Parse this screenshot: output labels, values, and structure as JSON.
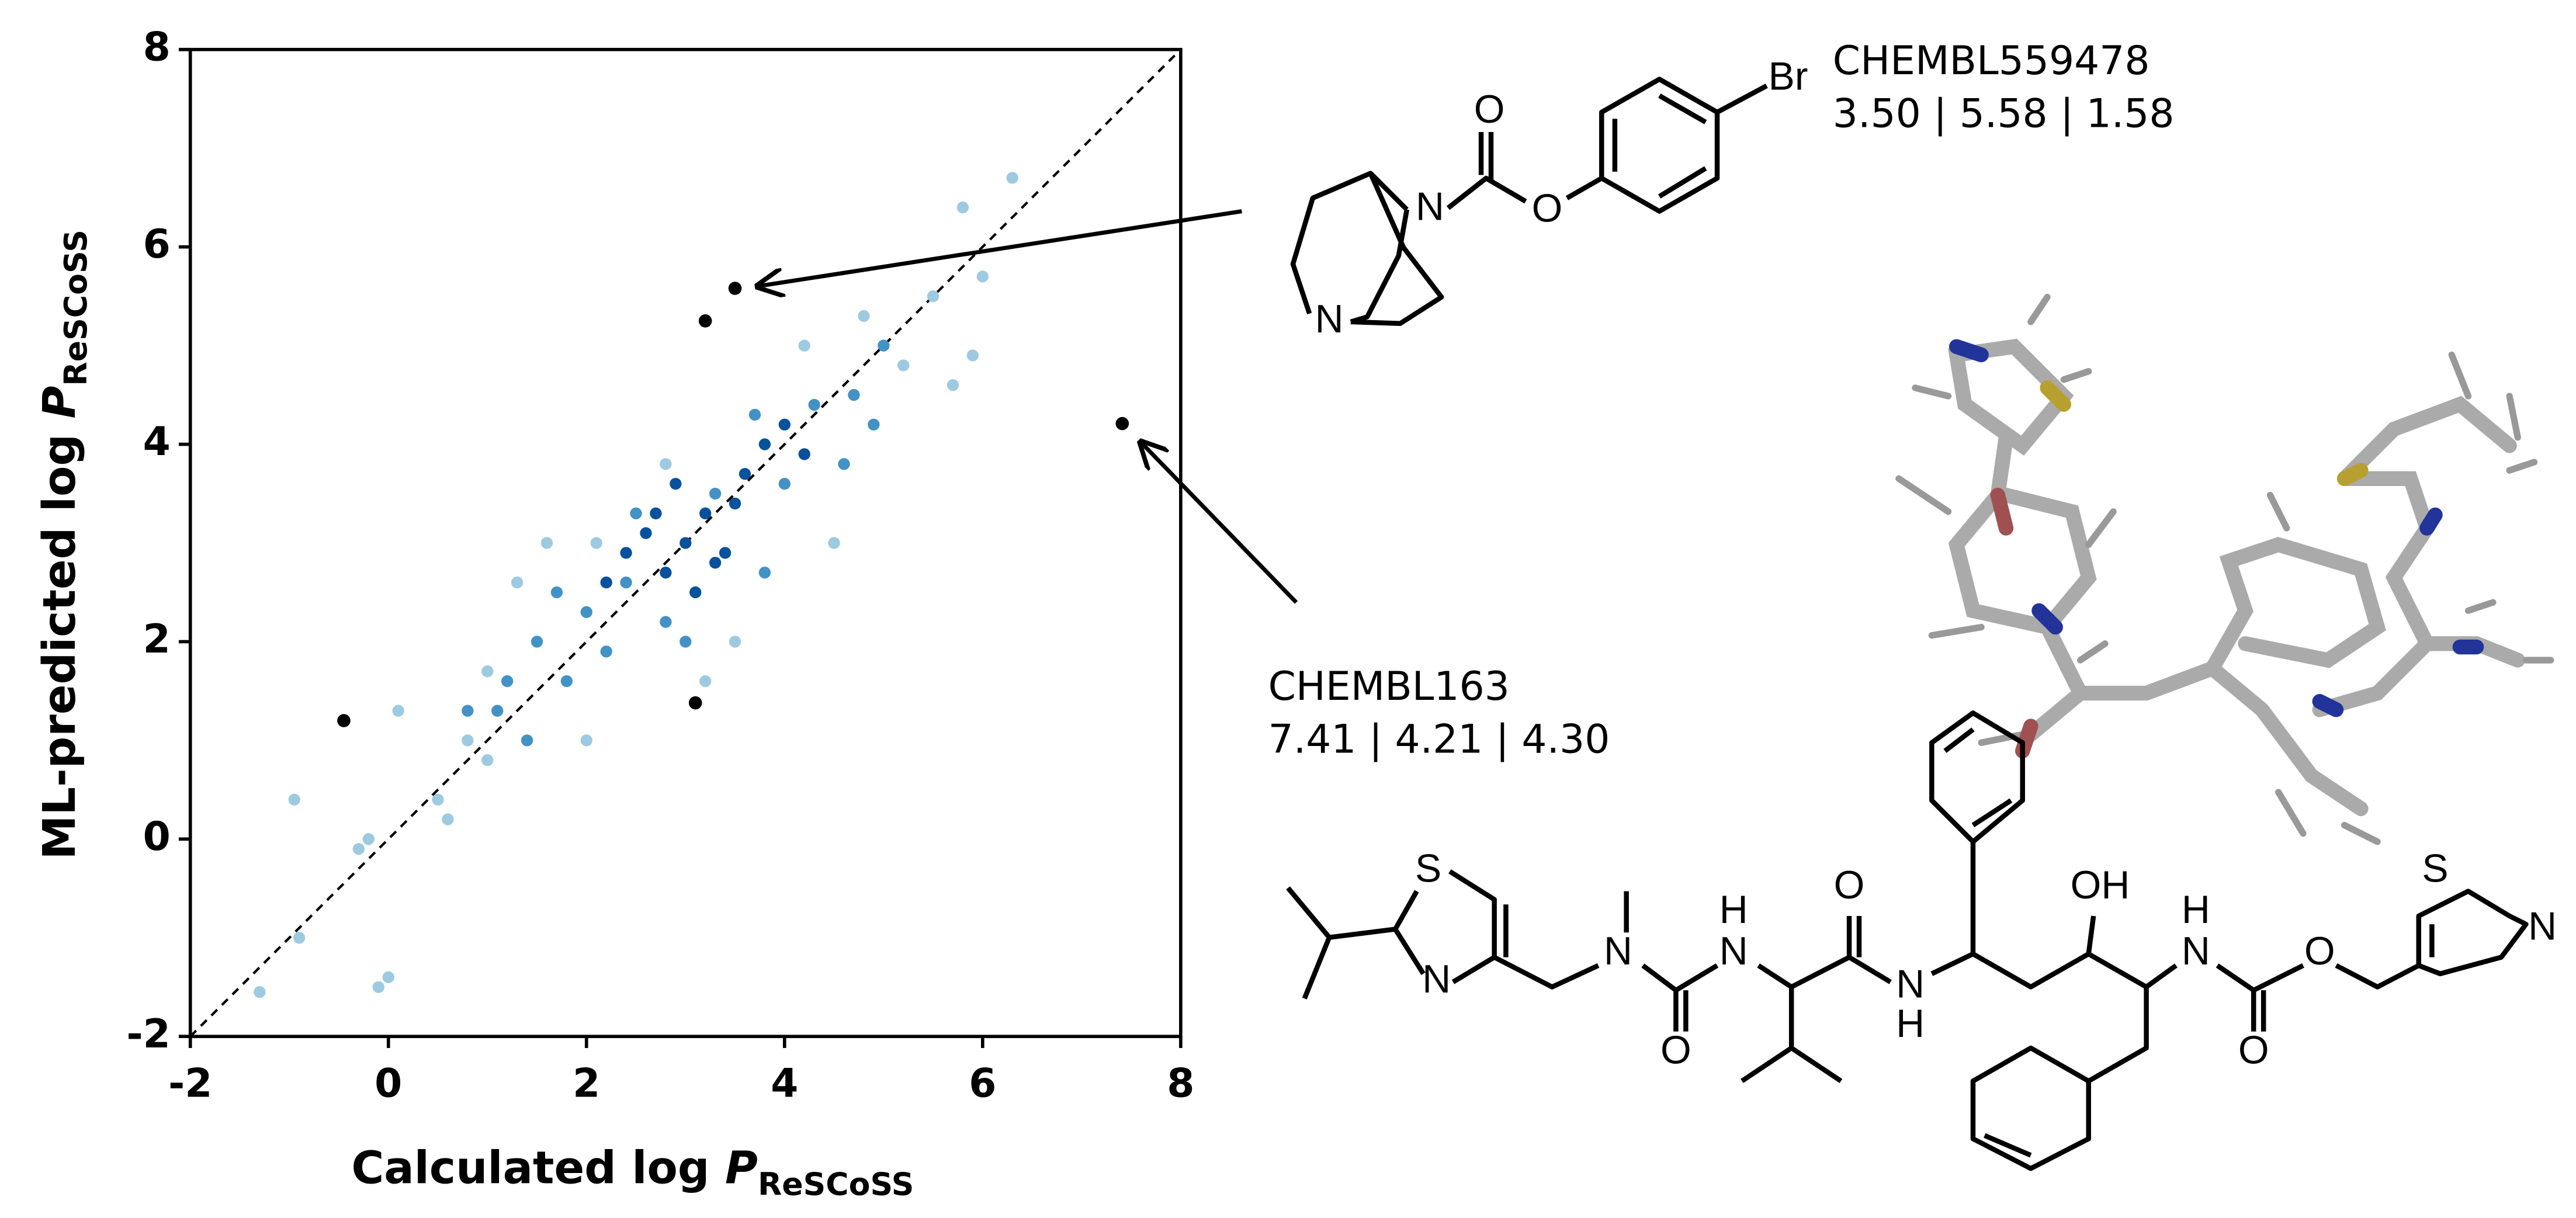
{
  "chart_data": {
    "type": "scatter",
    "x_label": {
      "text": "Calculated log ",
      "var": "P",
      "subscript": "ReSCoSS"
    },
    "y_label": {
      "text": "ML-predicted log ",
      "var": "P",
      "subscript": "ReSCoSS"
    },
    "xlim": [
      -2,
      8
    ],
    "ylim": [
      -2,
      8
    ],
    "xticks": [
      -2,
      0,
      2,
      4,
      6,
      8
    ],
    "yticks": [
      -2,
      0,
      2,
      4,
      6,
      8
    ],
    "identity_line": true,
    "x": [
      -1.3,
      -0.9,
      -0.95,
      0.0,
      -0.1,
      -0.3,
      0.1,
      0.5,
      0.8,
      1.3,
      1.6,
      2.8,
      3.5,
      4.8,
      5.5,
      5.8,
      6.3,
      6.0,
      5.7,
      4.2,
      2.0,
      3.2,
      -0.2,
      0.6,
      1.0,
      5.9,
      4.5,
      2.1,
      1.0,
      5.2,
      0.8,
      1.2,
      1.5,
      1.8,
      2.0,
      2.2,
      1.1,
      2.4,
      3.3,
      4.0,
      4.3,
      4.7,
      5.0,
      3.7,
      2.8,
      3.0,
      1.4,
      4.6,
      3.8,
      2.5,
      4.9,
      1.7,
      2.4,
      2.6,
      2.8,
      3.0,
      3.2,
      3.4,
      3.6,
      3.8,
      4.0,
      2.9,
      3.1,
      3.5,
      2.7,
      3.3,
      2.2,
      4.2
    ],
    "y": [
      -1.55,
      -1.0,
      0.4,
      -1.4,
      -1.5,
      -0.1,
      1.3,
      0.4,
      1.0,
      2.6,
      3.0,
      3.8,
      2.0,
      5.3,
      5.5,
      6.4,
      6.7,
      5.7,
      4.6,
      5.0,
      1.0,
      1.6,
      0.0,
      0.2,
      0.8,
      4.9,
      3.0,
      3.0,
      1.7,
      4.8,
      1.3,
      1.6,
      2.0,
      1.6,
      2.3,
      1.9,
      1.3,
      2.6,
      3.5,
      3.6,
      4.4,
      4.5,
      5.0,
      4.3,
      2.2,
      2.0,
      1.0,
      3.8,
      2.7,
      3.3,
      4.2,
      2.5,
      2.9,
      3.1,
      2.7,
      3.0,
      3.3,
      2.9,
      3.7,
      4.0,
      4.2,
      3.6,
      2.5,
      3.4,
      3.3,
      2.8,
      2.6,
      3.9
    ],
    "colors": [
      "#9ecae1",
      "#9ecae1",
      "#9ecae1",
      "#9ecae1",
      "#9ecae1",
      "#9ecae1",
      "#9ecae1",
      "#9ecae1",
      "#9ecae1",
      "#9ecae1",
      "#9ecae1",
      "#9ecae1",
      "#9ecae1",
      "#9ecae1",
      "#9ecae1",
      "#9ecae1",
      "#9ecae1",
      "#9ecae1",
      "#9ecae1",
      "#9ecae1",
      "#9ecae1",
      "#9ecae1",
      "#9ecae1",
      "#9ecae1",
      "#9ecae1",
      "#9ecae1",
      "#9ecae1",
      "#9ecae1",
      "#9ecae1",
      "#9ecae1",
      "#4292c6",
      "#4292c6",
      "#4292c6",
      "#4292c6",
      "#4292c6",
      "#4292c6",
      "#4292c6",
      "#4292c6",
      "#4292c6",
      "#4292c6",
      "#4292c6",
      "#4292c6",
      "#4292c6",
      "#4292c6",
      "#4292c6",
      "#4292c6",
      "#4292c6",
      "#4292c6",
      "#4292c6",
      "#4292c6",
      "#4292c6",
      "#4292c6",
      "#08519c",
      "#08519c",
      "#08519c",
      "#08519c",
      "#08519c",
      "#08519c",
      "#08519c",
      "#08519c",
      "#08519c",
      "#08519c",
      "#08519c",
      "#08519c",
      "#08519c",
      "#08519c",
      "#08519c",
      "#08519c"
    ],
    "highlighted": {
      "x": [
        3.5,
        3.2,
        7.41,
        -0.45,
        3.1
      ],
      "y": [
        5.58,
        5.25,
        4.21,
        1.2,
        1.38
      ],
      "color": "#000000"
    },
    "annotations": [
      {
        "name": "CHEMBL559478",
        "values_text": "3.50 | 5.58 | 1.58"
      },
      {
        "name": "CHEMBL163",
        "values_text": "7.41 | 4.21 | 4.30"
      }
    ]
  },
  "molecule_1": {
    "atoms": [
      "Br",
      "O",
      "O",
      "N",
      "N"
    ]
  },
  "molecule_2": {
    "atoms": [
      "S",
      "N",
      "N",
      "H",
      "N",
      "O",
      "O",
      "N",
      "H",
      "OH",
      "H",
      "N",
      "O",
      "O",
      "S",
      "N"
    ]
  }
}
